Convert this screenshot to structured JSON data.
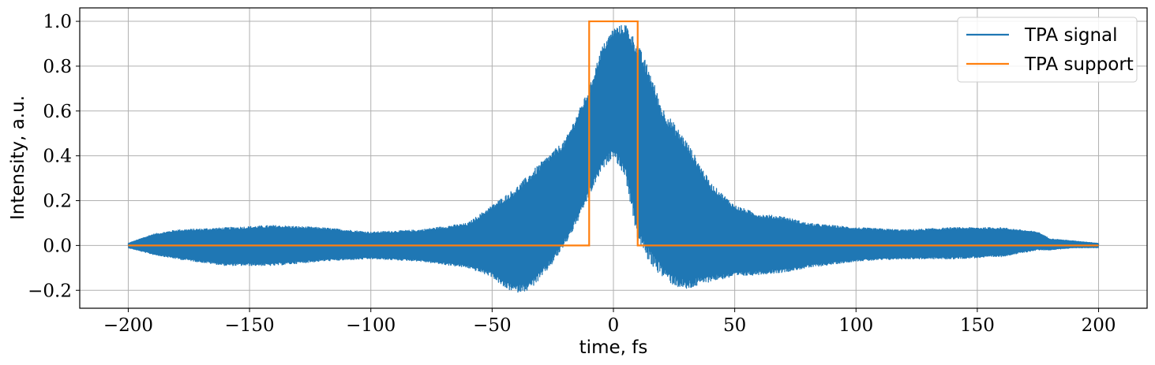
{
  "chart_data": {
    "type": "line",
    "title": "",
    "xlabel": "time, fs",
    "ylabel": "Intensity, a.u.",
    "xlim": [
      -220,
      220
    ],
    "ylim": [
      -0.28,
      1.06
    ],
    "xticks": [
      -200,
      -150,
      -100,
      -50,
      0,
      50,
      100,
      150,
      200
    ],
    "xtick_labels": [
      "−200",
      "−150",
      "−100",
      "−50",
      "0",
      "50",
      "100",
      "150",
      "200"
    ],
    "yticks": [
      -0.2,
      0.0,
      0.2,
      0.4,
      0.6,
      0.8,
      1.0
    ],
    "ytick_labels": [
      "−0.2",
      "0.0",
      "0.2",
      "0.4",
      "0.6",
      "0.8",
      "1.0"
    ],
    "grid": true,
    "legend_position": "top-right",
    "series": [
      {
        "name": "TPA signal",
        "color": "#1f77b4",
        "kind": "oscillating",
        "x_range": [
          -200,
          200
        ],
        "upper_envelope": {
          "x": [
            -200,
            -190,
            -180,
            -160,
            -140,
            -120,
            -100,
            -80,
            -60,
            -50,
            -40,
            -30,
            -20,
            -10,
            -5,
            0,
            5,
            10,
            15,
            20,
            30,
            40,
            50,
            60,
            70,
            80,
            100,
            120,
            140,
            160,
            175,
            180,
            190,
            200
          ],
          "y": [
            0.01,
            0.05,
            0.07,
            0.08,
            0.09,
            0.08,
            0.06,
            0.07,
            0.1,
            0.18,
            0.26,
            0.37,
            0.47,
            0.7,
            0.88,
            0.97,
            0.99,
            0.9,
            0.78,
            0.62,
            0.47,
            0.28,
            0.18,
            0.14,
            0.13,
            0.1,
            0.08,
            0.07,
            0.08,
            0.08,
            0.06,
            0.03,
            0.02,
            0.01
          ]
        },
        "lower_envelope": {
          "x": [
            -200,
            -190,
            -180,
            -160,
            -140,
            -120,
            -100,
            -80,
            -60,
            -50,
            -45,
            -40,
            -35,
            -30,
            -25,
            -20,
            -15,
            -10,
            -5,
            0,
            5,
            10,
            15,
            20,
            25,
            30,
            40,
            50,
            60,
            70,
            80,
            100,
            120,
            140,
            160,
            175,
            180,
            190,
            200
          ],
          "y": [
            -0.01,
            -0.04,
            -0.06,
            -0.09,
            -0.09,
            -0.07,
            -0.06,
            -0.07,
            -0.1,
            -0.14,
            -0.19,
            -0.21,
            -0.2,
            -0.15,
            -0.08,
            0.0,
            0.1,
            0.22,
            0.33,
            0.4,
            0.3,
            0.02,
            -0.08,
            -0.14,
            -0.18,
            -0.2,
            -0.16,
            -0.14,
            -0.13,
            -0.12,
            -0.1,
            -0.07,
            -0.06,
            -0.06,
            -0.05,
            -0.02,
            -0.02,
            -0.01,
            -0.01
          ]
        }
      },
      {
        "name": "TPA support",
        "color": "#ff7f0e",
        "x": [
          -200,
          -10,
          -10,
          10,
          10,
          200
        ],
        "values": [
          0,
          0,
          1,
          1,
          0,
          0
        ]
      }
    ]
  }
}
